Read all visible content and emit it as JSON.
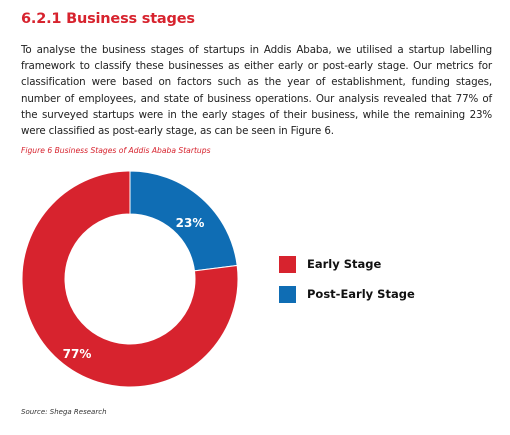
{
  "section": {
    "heading": "6.2.1 Business stages",
    "paragraph": "To analyse the business stages of startups in Addis Ababa, we utilised a startup labelling framework to classify these businesses as either early or post-early stage. Our metrics for classification were based on factors such as the year of establishment, funding stages, number of employees, and state of business operations. Our analysis revealed that 77% of the surveyed startups were in the early stages of their business, while the remaining 23% were classified as post-early stage, as can be seen in Figure 6."
  },
  "figure": {
    "caption": "Figure 6 Business Stages of Addis Ababa Startups",
    "source": "Source: Shega Research"
  },
  "chart_data": {
    "type": "pie",
    "donut": true,
    "categories": [
      "Early Stage",
      "Post-Early Stage"
    ],
    "values": [
      77,
      23
    ],
    "data_labels": [
      "77%",
      "23%"
    ],
    "colors": [
      "#d7232e",
      "#0f6db4"
    ],
    "legend_position": "right"
  }
}
